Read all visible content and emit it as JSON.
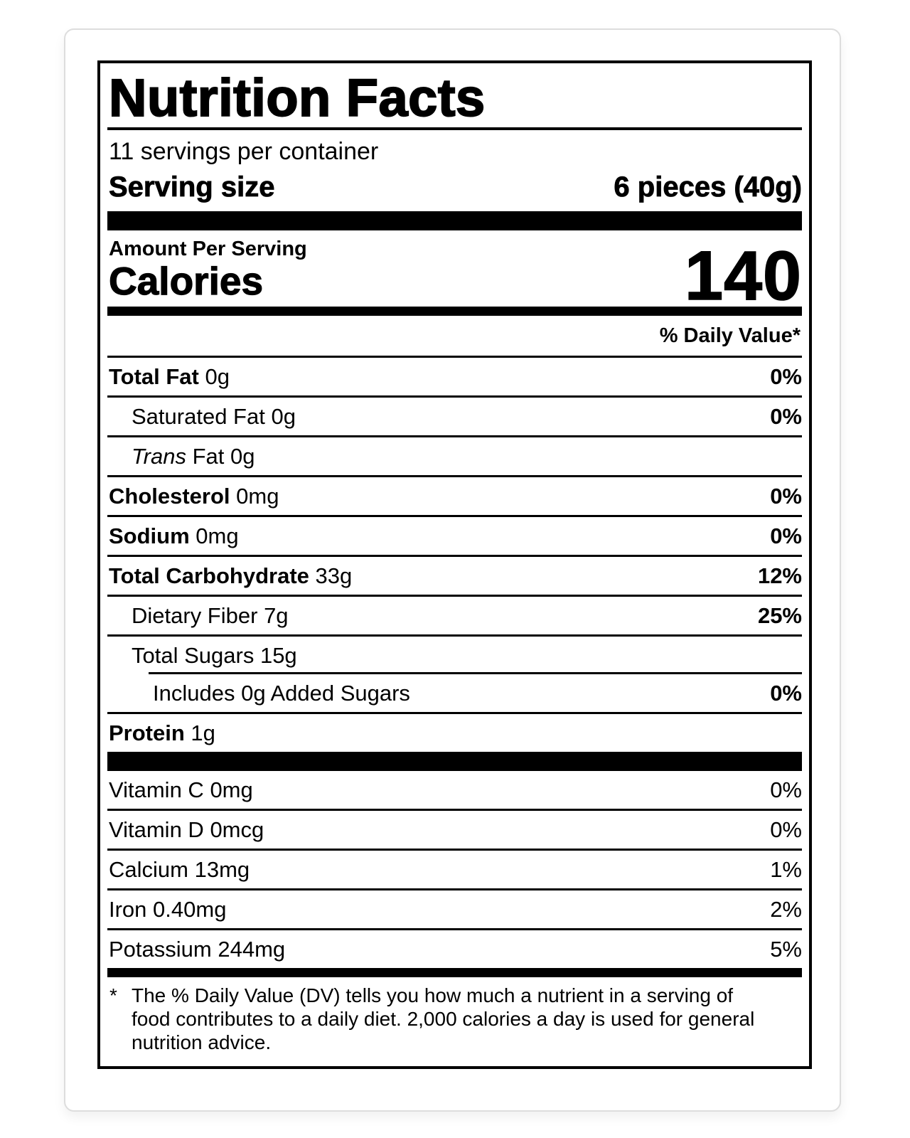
{
  "colors": {
    "text": "#000000",
    "card_border": "#dddddd",
    "rule": "#000000",
    "background": "#ffffff"
  },
  "label": {
    "title": "Nutrition Facts",
    "servings_per_container": "11 servings per container",
    "serving_size": {
      "label": "Serving size",
      "value": "6 pieces (40g)"
    },
    "amount_per_serving": "Amount Per Serving",
    "calories": {
      "label": "Calories",
      "value": "140"
    },
    "daily_value_header": "% Daily Value*",
    "nutrients": [
      {
        "name": "Total Fat",
        "amount": "0g",
        "dv": "0%"
      },
      {
        "name": "Saturated Fat",
        "amount": "0g",
        "dv": "0%"
      },
      {
        "name": "Trans",
        "amount": "Fat 0g",
        "dv": ""
      },
      {
        "name": "Cholesterol",
        "amount": "0mg",
        "dv": "0%"
      },
      {
        "name": "Sodium",
        "amount": "0mg",
        "dv": "0%"
      },
      {
        "name": "Total Carbohydrate",
        "amount": "33g",
        "dv": "12%"
      },
      {
        "name": "Dietary Fiber",
        "amount": "7g",
        "dv": "25%"
      },
      {
        "name": "Total Sugars",
        "amount": "15g",
        "dv": ""
      },
      {
        "name": "Includes 0g Added Sugars",
        "amount": "",
        "dv": "0%"
      },
      {
        "name": "Protein",
        "amount": "1g",
        "dv": ""
      }
    ],
    "micronutrients": [
      {
        "name": "Vitamin C",
        "amount": "0mg",
        "dv": "0%"
      },
      {
        "name": "Vitamin D",
        "amount": "0mcg",
        "dv": "0%"
      },
      {
        "name": "Calcium",
        "amount": "13mg",
        "dv": "1%"
      },
      {
        "name": "Iron",
        "amount": "0.40mg",
        "dv": "2%"
      },
      {
        "name": "Potassium",
        "amount": "244mg",
        "dv": "5%"
      }
    ],
    "footnote": {
      "marker": "*",
      "lines": [
        "The % Daily Value (DV) tells you how much a nutrient in a serving of",
        "food contributes to a daily diet. 2,000 calories a day is used for general",
        "nutrition advice."
      ]
    }
  }
}
